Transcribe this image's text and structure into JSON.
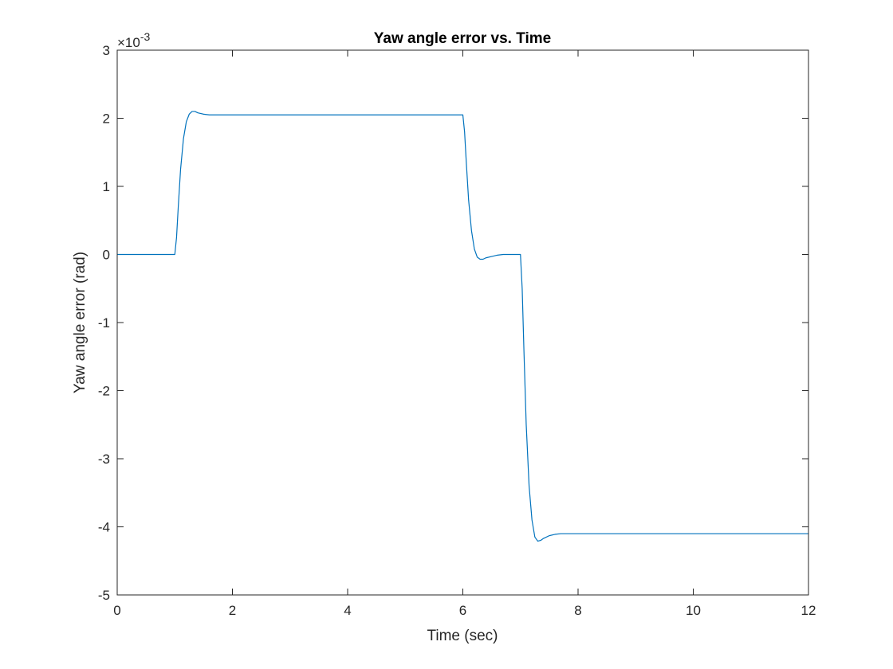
{
  "chart_data": {
    "type": "line",
    "title": "Yaw angle error vs. Time",
    "xlabel": "Time (sec)",
    "ylabel": "Yaw angle error (rad)",
    "xlim": [
      0,
      12
    ],
    "ylim": [
      -5,
      3
    ],
    "x_ticks": [
      0,
      2,
      4,
      6,
      8,
      10,
      12
    ],
    "y_ticks": [
      -5,
      -4,
      -3,
      -2,
      -1,
      0,
      1,
      2,
      3
    ],
    "y_multiplier": {
      "times": "×10",
      "exponent": "-3"
    },
    "grid": false,
    "box": true,
    "series": [
      {
        "color": "#0072BD",
        "x": [
          0,
          1.0,
          1.03,
          1.06,
          1.1,
          1.15,
          1.2,
          1.25,
          1.3,
          1.35,
          1.4,
          1.5,
          1.6,
          1.7,
          1.8,
          2.0,
          3.0,
          4.0,
          5.0,
          6.0,
          6.03,
          6.06,
          6.1,
          6.15,
          6.2,
          6.25,
          6.3,
          6.35,
          6.4,
          6.5,
          6.6,
          6.7,
          6.8,
          7.0,
          7.03,
          7.06,
          7.1,
          7.15,
          7.2,
          7.25,
          7.3,
          7.35,
          7.4,
          7.5,
          7.6,
          7.7,
          7.8,
          8.0,
          9.0,
          10.0,
          11.0,
          12.0
        ],
        "y": [
          0,
          0,
          0.25,
          0.7,
          1.25,
          1.7,
          1.95,
          2.06,
          2.1,
          2.1,
          2.08,
          2.06,
          2.05,
          2.05,
          2.05,
          2.05,
          2.05,
          2.05,
          2.05,
          2.05,
          1.8,
          1.35,
          0.8,
          0.35,
          0.08,
          -0.04,
          -0.07,
          -0.07,
          -0.05,
          -0.03,
          -0.01,
          0,
          0,
          0,
          -0.5,
          -1.4,
          -2.5,
          -3.4,
          -3.9,
          -4.15,
          -4.21,
          -4.2,
          -4.17,
          -4.13,
          -4.11,
          -4.1,
          -4.1,
          -4.1,
          -4.1,
          -4.1,
          -4.1,
          -4.1
        ]
      }
    ]
  }
}
